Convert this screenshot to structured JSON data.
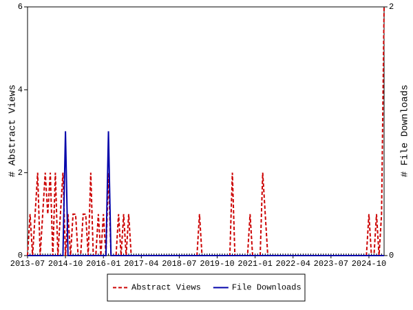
{
  "chart_data": {
    "type": "line",
    "categories": [
      "2013-07",
      null,
      null,
      null,
      null,
      null,
      null,
      null,
      null,
      null,
      null,
      null,
      null,
      null,
      null,
      "2014-10",
      null,
      null,
      null,
      null,
      null,
      null,
      null,
      null,
      null,
      null,
      null,
      null,
      null,
      null,
      "2016-01",
      null,
      null,
      null,
      null,
      null,
      null,
      null,
      null,
      null,
      null,
      null,
      null,
      null,
      null,
      "2017-04",
      null,
      null,
      null,
      null,
      null,
      null,
      null,
      null,
      null,
      null,
      null,
      null,
      null,
      null,
      "2018-07",
      null,
      null,
      null,
      null,
      null,
      null,
      null,
      null,
      null,
      null,
      null,
      null,
      null,
      null,
      "2019-10",
      null,
      null,
      null,
      null,
      null,
      null,
      null,
      null,
      null,
      null,
      null,
      null,
      null,
      null,
      "2021-01",
      null,
      null,
      null,
      null,
      null,
      null,
      null,
      null,
      null,
      null,
      null,
      null,
      null,
      null,
      "2022-04",
      null,
      null,
      null,
      null,
      null,
      null,
      null,
      null,
      null,
      null,
      null,
      null,
      null,
      null,
      "2023-07",
      null,
      null,
      null,
      null,
      null,
      null,
      null,
      null,
      null,
      null,
      null,
      null,
      null,
      null,
      "2024-10",
      null,
      null,
      null,
      null,
      null,
      null
    ],
    "series": [
      {
        "name": "Abstract Views",
        "color": "#cc0000",
        "dashed": true,
        "values": [
          0,
          1,
          0,
          1,
          2,
          0,
          1,
          2,
          1,
          2,
          0,
          2,
          0,
          1,
          2,
          0,
          1,
          0,
          1,
          1,
          0,
          0,
          1,
          1,
          0,
          2,
          0,
          0,
          1,
          0,
          1,
          0,
          2,
          0,
          0,
          0,
          1,
          0,
          1,
          0,
          1,
          0,
          0,
          0,
          0,
          0,
          0,
          0,
          0,
          0,
          0,
          0,
          0,
          0,
          0,
          0,
          0,
          0,
          0,
          0,
          0,
          0,
          0,
          0,
          0,
          0,
          0,
          0,
          1,
          0,
          0,
          0,
          0,
          0,
          0,
          0,
          0,
          0,
          0,
          0,
          0,
          2,
          0,
          0,
          0,
          0,
          0,
          0,
          1,
          0,
          0,
          0,
          0,
          2,
          1,
          0,
          0,
          0,
          0,
          0,
          0,
          0,
          0,
          0,
          0,
          0,
          0,
          0,
          0,
          0,
          0,
          0,
          0,
          0,
          0,
          0,
          0,
          0,
          0,
          0,
          0,
          0,
          0,
          0,
          0,
          0,
          0,
          0,
          0,
          0,
          0,
          0,
          0,
          0,
          0,
          1,
          0,
          0,
          1,
          0,
          1,
          6
        ]
      },
      {
        "name": "File Downloads",
        "color": "#0000aa",
        "dashed": false,
        "axis": "y2",
        "values": [
          0,
          0,
          0,
          0,
          0,
          0,
          0,
          0,
          0,
          0,
          0,
          0,
          0,
          0,
          0,
          1,
          0,
          0,
          0,
          0,
          0,
          0,
          0,
          0,
          0,
          0,
          0,
          0,
          0,
          0,
          0,
          0,
          1,
          0,
          0,
          0,
          0,
          0,
          0,
          0,
          0,
          0,
          0,
          0,
          0,
          0,
          0,
          0,
          0,
          0,
          0,
          0,
          0,
          0,
          0,
          0,
          0,
          0,
          0,
          0,
          0,
          0,
          0,
          0,
          0,
          0,
          0,
          0,
          0,
          0,
          0,
          0,
          0,
          0,
          0,
          0,
          0,
          0,
          0,
          0,
          0,
          0,
          0,
          0,
          0,
          0,
          0,
          0,
          0,
          0,
          0,
          0,
          0,
          0,
          0,
          0,
          0,
          0,
          0,
          0,
          0,
          0,
          0,
          0,
          0,
          0,
          0,
          0,
          0,
          0,
          0,
          0,
          0,
          0,
          0,
          0,
          0,
          0,
          0,
          0,
          0,
          0,
          0,
          0,
          0,
          0,
          0,
          0,
          0,
          0,
          0,
          0,
          0,
          0,
          0,
          0,
          0,
          0,
          0,
          0,
          0,
          0
        ]
      }
    ],
    "ylabel": "# Abstract Views",
    "y2label": "# File Downloads",
    "ylim": [
      0,
      6
    ],
    "yticks": [
      0,
      2,
      4,
      6
    ],
    "y2lim": [
      0,
      2
    ],
    "y2ticks": [
      0,
      2
    ],
    "legend": "bottom"
  }
}
